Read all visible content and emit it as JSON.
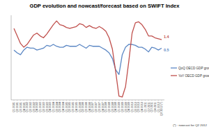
{
  "chart_data": {
    "type": "line",
    "title": "GDP evolution and nowcast/forecast based on SWIFT Index",
    "categories": [
      "Q1 2001",
      "Q2 2001",
      "Q3 2001",
      "Q4 2001",
      "Q1 2002",
      "Q2 2002",
      "Q3 2002",
      "Q4 2002",
      "Q1 2003",
      "Q2 2003",
      "Q3 2003",
      "Q4 2003",
      "Q1 2004",
      "Q2 2004",
      "Q3 2004",
      "Q4 2004",
      "Q1 2005",
      "Q2 2005",
      "Q3 2005",
      "Q4 2005",
      "Q1 2006",
      "Q2 2006",
      "Q3 2006",
      "Q4 2006",
      "Q1 2007",
      "Q2 2007",
      "Q3 2007",
      "Q4 2007",
      "Q1 2008",
      "Q2 2008",
      "Q3 2008",
      "Q4 2008",
      "Q1 2009",
      "Q2 2009",
      "Q3 2009",
      "Q4 2009",
      "Q1 2010",
      "Q2 2010",
      "Q3 2010",
      "Q4 2010",
      "Q1 2011",
      "Q2 2011",
      "Q3 2011",
      "Q4 2011",
      "Q1 2012",
      "Q2 2012 (*)"
    ],
    "series": [
      {
        "name": "QoQ OECD GDP growth",
        "color": "#5b87c4",
        "values": [
          0.3,
          0.0,
          -0.2,
          0.3,
          0.6,
          0.5,
          0.5,
          0.3,
          0.4,
          0.5,
          0.8,
          0.7,
          0.9,
          0.7,
          0.6,
          0.6,
          0.8,
          0.7,
          0.7,
          0.7,
          0.9,
          0.7,
          0.5,
          0.8,
          0.7,
          0.7,
          0.7,
          0.5,
          0.3,
          0.0,
          -0.6,
          -1.8,
          -2.3,
          -0.2,
          0.6,
          0.9,
          0.9,
          0.8,
          0.6,
          0.6,
          0.4,
          0.1,
          0.6,
          0.5,
          0.3,
          0.5
        ]
      },
      {
        "name": "YoY OECD GDP growth",
        "color": "#c0504d",
        "values": [
          2.6,
          1.8,
          1.0,
          0.6,
          0.9,
          1.4,
          1.9,
          2.1,
          1.8,
          1.6,
          2.0,
          2.5,
          3.0,
          3.4,
          3.0,
          2.9,
          2.7,
          2.6,
          2.7,
          2.8,
          3.1,
          3.0,
          2.7,
          2.9,
          2.7,
          2.6,
          2.8,
          2.6,
          2.3,
          1.6,
          0.4,
          -2.0,
          -4.6,
          -4.7,
          -3.6,
          -0.9,
          2.1,
          3.2,
          3.3,
          3.0,
          2.5,
          1.8,
          1.8,
          1.6,
          1.5,
          1.4
        ]
      }
    ],
    "annotations": [
      "0.5",
      "1.4"
    ],
    "footnote": "(*) : nowcast for Q2 2012",
    "ylim": [
      -5,
      4
    ],
    "tick_labels": "x",
    "grid": false,
    "legend": "right"
  }
}
